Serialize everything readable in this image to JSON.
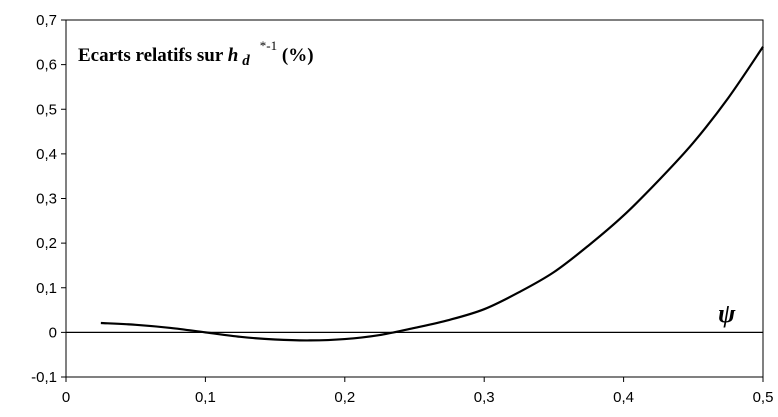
{
  "chart_data": {
    "type": "line",
    "title": {
      "prefix": "Ecarts relatifs sur ",
      "var": "h",
      "sub": "d",
      "sup": "*-1",
      "suffix": " (%)"
    },
    "x_axis_symbol": "ψ",
    "xlim": [
      0,
      0.5
    ],
    "ylim": [
      -0.1,
      0.7
    ],
    "x_ticks": [
      {
        "value": 0,
        "label": "0"
      },
      {
        "value": 0.1,
        "label": "0,1"
      },
      {
        "value": 0.2,
        "label": "0,2"
      },
      {
        "value": 0.3,
        "label": "0,3"
      },
      {
        "value": 0.4,
        "label": "0,4"
      },
      {
        "value": 0.5,
        "label": "0,5"
      }
    ],
    "y_ticks": [
      {
        "value": -0.1,
        "label": "-0,1"
      },
      {
        "value": 0,
        "label": "0"
      },
      {
        "value": 0.1,
        "label": "0,1"
      },
      {
        "value": 0.2,
        "label": "0,2"
      },
      {
        "value": 0.3,
        "label": "0,3"
      },
      {
        "value": 0.4,
        "label": "0,4"
      },
      {
        "value": 0.5,
        "label": "0,5"
      },
      {
        "value": 0.6,
        "label": "0,6"
      },
      {
        "value": 0.7,
        "label": "0,7"
      }
    ],
    "grid": false,
    "series": [
      {
        "color": "#000000",
        "x": [
          0.025,
          0.05,
          0.075,
          0.1,
          0.125,
          0.15,
          0.175,
          0.2,
          0.225,
          0.25,
          0.275,
          0.3,
          0.325,
          0.35,
          0.375,
          0.4,
          0.425,
          0.45,
          0.475,
          0.5
        ],
        "y": [
          0.021,
          0.017,
          0.01,
          0.0,
          -0.01,
          -0.016,
          -0.018,
          -0.015,
          -0.006,
          0.01,
          0.028,
          0.052,
          0.09,
          0.135,
          0.195,
          0.262,
          0.34,
          0.425,
          0.525,
          0.64
        ]
      }
    ]
  }
}
